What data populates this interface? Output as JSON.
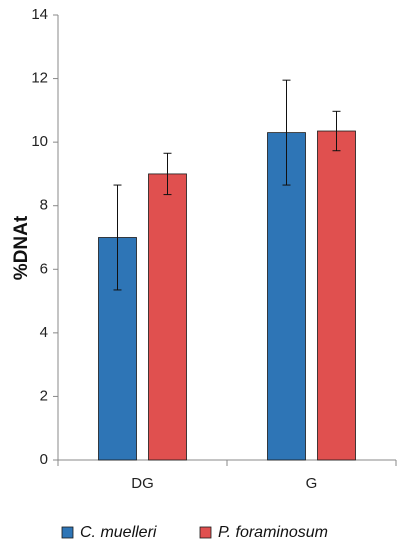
{
  "chart_data": {
    "type": "bar",
    "categories": [
      "DG",
      "G"
    ],
    "series": [
      {
        "name": "C. muelleri",
        "color": "#2e75b6",
        "values": [
          7.0,
          10.3
        ],
        "errors": [
          1.65,
          1.65
        ]
      },
      {
        "name": "P. foraminosum",
        "color": "#e0504f",
        "values": [
          9.0,
          10.35
        ],
        "errors": [
          0.65,
          0.62
        ]
      }
    ],
    "xlabel": "",
    "ylabel": "%DNAt",
    "ylim": [
      0,
      14
    ],
    "yticks": [
      0,
      2,
      4,
      6,
      8,
      10,
      12,
      14
    ],
    "grid": false,
    "legend": "bottom"
  }
}
